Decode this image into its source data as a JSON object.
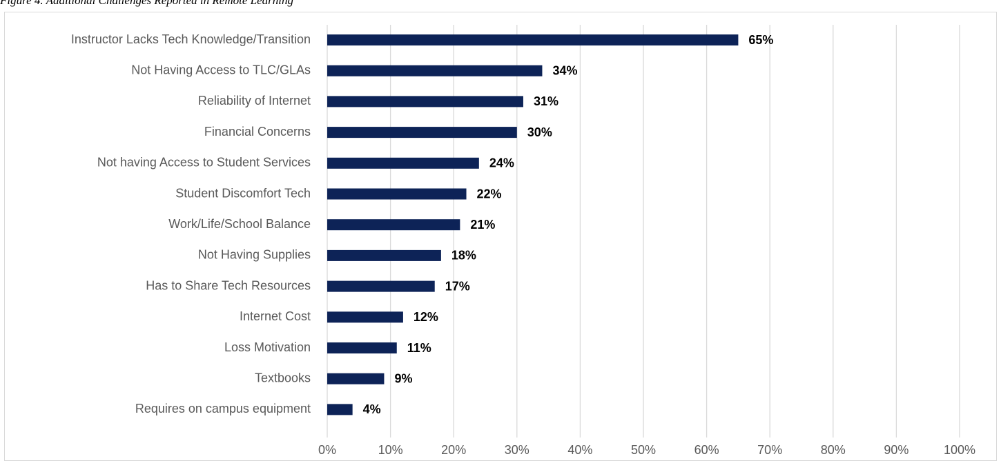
{
  "caption": "Figure 4. Additional Challenges Reported in Remote Learning",
  "colors": {
    "bar": "#0d2357",
    "grid": "#d9d9d9",
    "axis_text": "#595959"
  },
  "chart_data": {
    "type": "bar",
    "orientation": "horizontal",
    "categories": [
      "Instructor Lacks Tech Knowledge/Transition",
      "Not Having Access to TLC/GLAs",
      "Reliability of Internet",
      "Financial Concerns",
      "Not having Access to Student Services",
      "Student Discomfort Tech",
      "Work/Life/School Balance",
      "Not Having Supplies",
      "Has to Share Tech Resources",
      "Internet Cost",
      "Loss Motivation",
      "Textbooks",
      "Requires on campus equipment"
    ],
    "values": [
      65,
      34,
      31,
      30,
      24,
      22,
      21,
      18,
      17,
      12,
      11,
      9,
      4
    ],
    "data_labels": [
      "65%",
      "34%",
      "31%",
      "30%",
      "24%",
      "22%",
      "21%",
      "18%",
      "17%",
      "12%",
      "11%",
      "9%",
      "4%"
    ],
    "xticks": [
      "0%",
      "10%",
      "20%",
      "30%",
      "40%",
      "50%",
      "60%",
      "70%",
      "80%",
      "90%",
      "100%"
    ],
    "xlim": [
      0,
      100
    ],
    "grid": true,
    "legend": "none"
  }
}
